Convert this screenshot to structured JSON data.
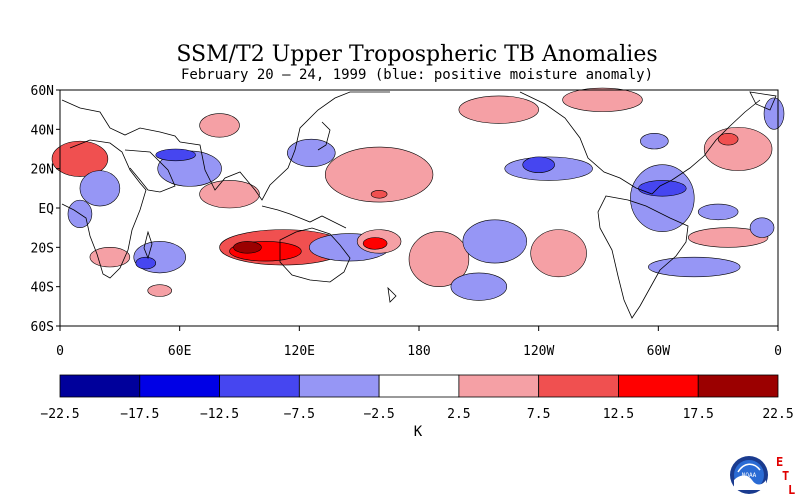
{
  "title": "SSM/T2 Upper Tropospheric TB Anomalies",
  "subtitle": "February 20 – 24, 1999 (blue: positive moisture anomaly)",
  "lat_labels": [
    "60N",
    "40N",
    "20N",
    "EQ",
    "20S",
    "40S",
    "60S"
  ],
  "lon_labels": [
    "0",
    "60E",
    "120E",
    "180",
    "120W",
    "60W",
    "0"
  ],
  "colorbar": {
    "ticks": [
      "-22.5",
      "-17.5",
      "-12.5",
      "-7.5",
      "-2.5",
      "2.5",
      "7.5",
      "12.5",
      "17.5",
      "22.5"
    ],
    "colors": [
      "#00009b",
      "#0000e6",
      "#4646f0",
      "#9696f5",
      "#ffffff",
      "#f5a0a5",
      "#f05050",
      "#ff0000",
      "#9b0000"
    ],
    "unit": "K"
  },
  "logo": {
    "text": "NOAA",
    "letters": [
      "E",
      "T",
      "L"
    ],
    "letter_color": "#e00000"
  },
  "chart_data": {
    "type": "map",
    "title": "SSM/T2 Upper Tropospheric TB Anomalies",
    "subtitle": "February 20 – 24, 1999 (blue: positive moisture anomaly)",
    "lat_range": [
      -60,
      60
    ],
    "lon_range": [
      0,
      360
    ],
    "unit": "K",
    "levels": [
      -22.5,
      -17.5,
      -12.5,
      -7.5,
      -2.5,
      2.5,
      7.5,
      12.5,
      17.5,
      22.5
    ],
    "anomaly_regions": [
      {
        "lon": 10,
        "lat": 25,
        "rx": 14,
        "ry": 9,
        "level": 7.5
      },
      {
        "lon": 20,
        "lat": 10,
        "rx": 10,
        "ry": 9,
        "level": -7.5
      },
      {
        "lon": 10,
        "lat": -3,
        "rx": 6,
        "ry": 7,
        "level": -7.5
      },
      {
        "lon": 25,
        "lat": -25,
        "rx": 10,
        "ry": 5,
        "level": 2.5
      },
      {
        "lon": 50,
        "lat": -25,
        "rx": 13,
        "ry": 8,
        "level": -7.5
      },
      {
        "lon": 43,
        "lat": -28,
        "rx": 5,
        "ry": 3,
        "level": -12.5
      },
      {
        "lon": 50,
        "lat": -42,
        "rx": 6,
        "ry": 3,
        "level": 2.5
      },
      {
        "lon": 65,
        "lat": 20,
        "rx": 16,
        "ry": 9,
        "level": -7.5
      },
      {
        "lon": 58,
        "lat": 27,
        "rx": 10,
        "ry": 3,
        "level": -12.5
      },
      {
        "lon": 80,
        "lat": 42,
        "rx": 10,
        "ry": 6,
        "level": 2.5
      },
      {
        "lon": 85,
        "lat": 7,
        "rx": 15,
        "ry": 7,
        "level": 2.5
      },
      {
        "lon": 112,
        "lat": -20,
        "rx": 32,
        "ry": 9,
        "level": 7.5
      },
      {
        "lon": 103,
        "lat": -22,
        "rx": 18,
        "ry": 5,
        "level": 12.5
      },
      {
        "lon": 94,
        "lat": -20,
        "rx": 7,
        "ry": 3,
        "level": 17.5
      },
      {
        "lon": 126,
        "lat": 28,
        "rx": 12,
        "ry": 7,
        "level": -7.5
      },
      {
        "lon": 160,
        "lat": 17,
        "rx": 27,
        "ry": 14,
        "level": 2.5
      },
      {
        "lon": 160,
        "lat": 7,
        "rx": 4,
        "ry": 2,
        "level": 7.5
      },
      {
        "lon": 145,
        "lat": -20,
        "rx": 20,
        "ry": 7,
        "level": -7.5
      },
      {
        "lon": 160,
        "lat": -17,
        "rx": 11,
        "ry": 6,
        "level": 2.5
      },
      {
        "lon": 158,
        "lat": -18,
        "rx": 6,
        "ry": 3,
        "level": 12.5
      },
      {
        "lon": 190,
        "lat": -26,
        "rx": 15,
        "ry": 14,
        "level": 2.5
      },
      {
        "lon": 218,
        "lat": -17,
        "rx": 16,
        "ry": 11,
        "level": -7.5
      },
      {
        "lon": 210,
        "lat": -40,
        "rx": 14,
        "ry": 7,
        "level": -7.5
      },
      {
        "lon": 250,
        "lat": -23,
        "rx": 14,
        "ry": 12,
        "level": 2.5
      },
      {
        "lon": 220,
        "lat": 50,
        "rx": 20,
        "ry": 7,
        "level": 2.5
      },
      {
        "lon": 245,
        "lat": 20,
        "rx": 22,
        "ry": 6,
        "level": -7.5
      },
      {
        "lon": 240,
        "lat": 22,
        "rx": 8,
        "ry": 4,
        "level": -12.5
      },
      {
        "lon": 272,
        "lat": 55,
        "rx": 20,
        "ry": 6,
        "level": 2.5
      },
      {
        "lon": 302,
        "lat": 5,
        "rx": 16,
        "ry": 17,
        "level": -7.5
      },
      {
        "lon": 302,
        "lat": 10,
        "rx": 12,
        "ry": 4,
        "level": -12.5
      },
      {
        "lon": 298,
        "lat": 34,
        "rx": 7,
        "ry": 4,
        "level": -7.5
      },
      {
        "lon": 340,
        "lat": 30,
        "rx": 17,
        "ry": 11,
        "level": 2.5
      },
      {
        "lon": 335,
        "lat": 35,
        "rx": 5,
        "ry": 3,
        "level": 7.5
      },
      {
        "lon": 335,
        "lat": -15,
        "rx": 20,
        "ry": 5,
        "level": 2.5
      },
      {
        "lon": 330,
        "lat": -2,
        "rx": 10,
        "ry": 4,
        "level": -7.5
      },
      {
        "lon": 318,
        "lat": -30,
        "rx": 23,
        "ry": 5,
        "level": -7.5
      },
      {
        "lon": 352,
        "lat": -10,
        "rx": 6,
        "ry": 5,
        "level": -7.5
      },
      {
        "lon": 358,
        "lat": 48,
        "rx": 5,
        "ry": 8,
        "level": -7.5
      }
    ]
  }
}
